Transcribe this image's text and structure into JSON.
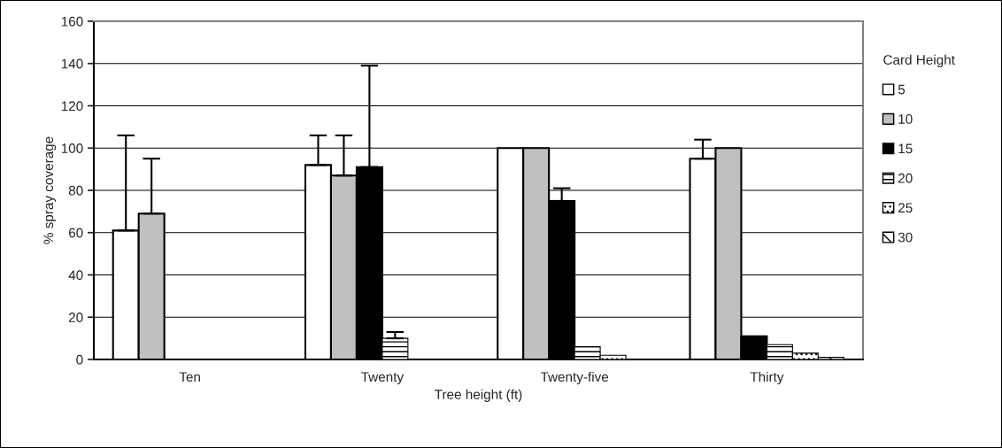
{
  "chart_data": {
    "type": "bar",
    "xlabel": "Tree height (ft)",
    "ylabel": "% spray coverage",
    "legend_title": "Card Height",
    "categories": [
      "Ten",
      "Twenty",
      "Twenty-five",
      "Thirty"
    ],
    "series": [
      {
        "name": "5",
        "color": "#ffffff",
        "values": [
          61,
          92,
          100,
          95
        ],
        "errors": [
          [
            61,
            106
          ],
          [
            92,
            106
          ],
          null,
          [
            95,
            104
          ]
        ]
      },
      {
        "name": "10",
        "color": "#c0c0c0",
        "values": [
          69,
          87,
          100,
          100
        ],
        "errors": [
          [
            69,
            95
          ],
          [
            87,
            106
          ],
          null,
          null
        ]
      },
      {
        "name": "15",
        "color": "#000000",
        "values": [
          null,
          91,
          75,
          11
        ],
        "errors": [
          null,
          [
            91,
            139
          ],
          [
            75,
            81
          ],
          null
        ]
      },
      {
        "name": "20",
        "color": "#000000",
        "values": [
          null,
          10,
          6,
          7
        ],
        "errors": [
          null,
          [
            10,
            13
          ],
          null,
          null
        ]
      },
      {
        "name": "25",
        "color": "#000000",
        "values": [
          null,
          null,
          2,
          3
        ]
      },
      {
        "name": "30",
        "color": "#000000",
        "values": [
          null,
          null,
          null,
          1
        ]
      }
    ],
    "ylim": [
      0,
      160
    ],
    "yticks": [
      0,
      20,
      40,
      60,
      80,
      100,
      120,
      140,
      160
    ],
    "grid": "y",
    "legend": "right"
  }
}
